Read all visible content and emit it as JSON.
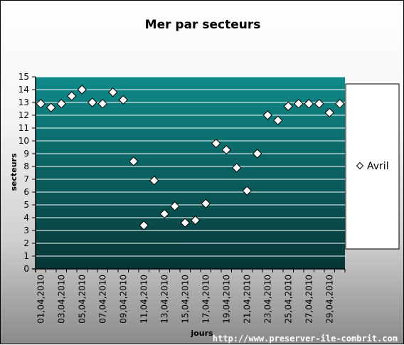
{
  "chart_data": {
    "type": "scatter",
    "title": "Mer par secteurs",
    "xlabel": "jours",
    "ylabel": "secteurs",
    "ylim": [
      0,
      15
    ],
    "yticks": [
      0,
      1,
      2,
      3,
      4,
      5,
      6,
      7,
      8,
      9,
      10,
      11,
      12,
      13,
      14,
      15
    ],
    "x_tick_labels": [
      "01,04,2010",
      "03,04,2010",
      "05,04,2010",
      "07,04,2010",
      "09,04,2010",
      "11,04,2010",
      "13,04,2010",
      "15,04,2010",
      "17,04,2010",
      "19,04,2010",
      "21,04,2010",
      "23,04,2010",
      "25,04,2010",
      "27,04,2010",
      "29,04,2010"
    ],
    "x": [
      "01,04,2010",
      "02,04,2010",
      "03,04,2010",
      "04,04,2010",
      "05,04,2010",
      "06,04,2010",
      "07,04,2010",
      "08,04,2010",
      "09,04,2010",
      "10,04,2010",
      "11,04,2010",
      "12,04,2010",
      "13,04,2010",
      "14,04,2010",
      "15,04,2010",
      "16,04,2010",
      "17,04,2010",
      "18,04,2010",
      "19,04,2010",
      "20,04,2010",
      "21,04,2010",
      "22,04,2010",
      "23,04,2010",
      "24,04,2010",
      "25,04,2010",
      "26,04,2010",
      "27,04,2010",
      "28,04,2010",
      "29,04,2010",
      "30,04,2010"
    ],
    "series": [
      {
        "name": "Avril",
        "values": [
          12.9,
          12.6,
          12.9,
          13.5,
          14.0,
          13.0,
          12.9,
          13.8,
          13.2,
          8.4,
          3.4,
          6.9,
          4.3,
          4.9,
          3.6,
          3.8,
          5.1,
          9.8,
          9.3,
          7.9,
          6.1,
          9.0,
          12.0,
          11.6,
          12.7,
          12.9,
          12.9,
          12.9,
          12.2,
          12.9
        ]
      }
    ],
    "grid": true,
    "legend_position": "right",
    "colors": {
      "plot_top": "#0f8a8a",
      "plot_bottom": "#073636",
      "marker_fill": "#ffffff",
      "marker_stroke": "#000000",
      "gridline": "#ffffff"
    }
  },
  "footer": {
    "url": "http://www.preserver-ile-combrit.com"
  }
}
